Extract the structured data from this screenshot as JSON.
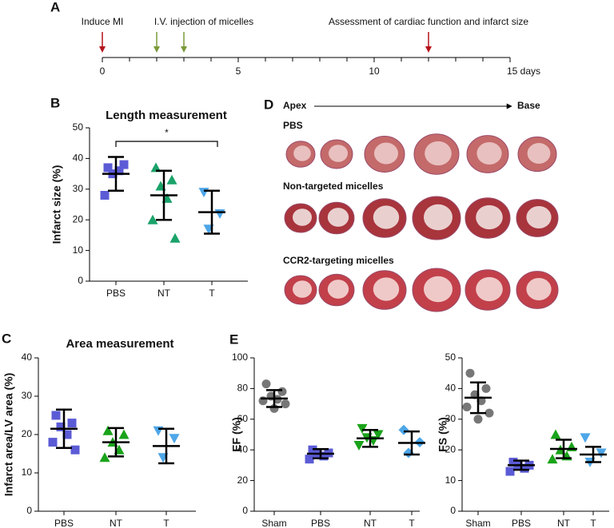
{
  "chart_data": [
    {
      "type": "timeline",
      "panel_label": "A",
      "xlim": [
        0,
        15
      ],
      "xticks": [
        0,
        5,
        10,
        {
          "value": 15,
          "label": "15 days"
        }
      ],
      "events": [
        {
          "label": "Induce MI",
          "x": [
            0
          ],
          "color": "#b5121b"
        },
        {
          "label": "I.V. injection of micelles",
          "x": [
            2,
            3
          ],
          "color": "#7a9a3a"
        },
        {
          "label": "Assessment of cardiac function and infarct size",
          "x": [
            12
          ],
          "color": "#b5121b"
        }
      ]
    },
    {
      "type": "dotplot",
      "panel_label": "B",
      "title": "Length measurement",
      "y_label": "Infarct size (%)",
      "categories": [
        "PBS",
        "NT",
        "T"
      ],
      "colors": [
        "#5b5bd6",
        "#1aa36a",
        "#4da6e8"
      ],
      "markers": [
        "square",
        "triangle",
        "triangle-down"
      ],
      "points": [
        [
          37,
          38,
          35,
          36,
          28
        ],
        [
          37,
          33,
          31,
          27,
          20,
          14
        ],
        [
          29,
          22,
          17
        ]
      ],
      "means": [
        35,
        28,
        22.5
      ],
      "errors": [
        5.5,
        8,
        7
      ],
      "ylim": [
        0,
        50
      ],
      "yticks": [
        0,
        10,
        20,
        30,
        40,
        50
      ],
      "annotation": "*"
    },
    {
      "type": "dotplot",
      "panel_label": "C",
      "title": "Area measurement",
      "y_label": "Infarct area/LV area (%)",
      "categories": [
        "PBS",
        "NT",
        "T"
      ],
      "colors": [
        "#5b5bd6",
        "#1aa31a",
        "#4da6e8"
      ],
      "markers": [
        "square",
        "triangle",
        "triangle-down"
      ],
      "points": [
        [
          25,
          23,
          22,
          20,
          18,
          16
        ],
        [
          21,
          20,
          18,
          16,
          14
        ],
        [
          21,
          19,
          14
        ]
      ],
      "means": [
        21.5,
        18,
        17
      ],
      "errors": [
        5,
        3.7,
        4.5
      ],
      "ylim": [
        0,
        40
      ],
      "yticks": [
        0,
        10,
        20,
        30,
        40
      ]
    },
    {
      "type": "dotplot",
      "panel_label": "E",
      "y_label": "EF (%)",
      "categories": [
        "Sham",
        "PBS",
        "NT",
        "T"
      ],
      "colors": [
        "#777777",
        "#5b5bd6",
        "#1aa31a",
        "#4da6e8"
      ],
      "markers": [
        "circle",
        "square",
        "triangle-down",
        "diamond"
      ],
      "points": [
        [
          83,
          78,
          75,
          73,
          72,
          70,
          67
        ],
        [
          40,
          38,
          37,
          36,
          34
        ],
        [
          54,
          50,
          48,
          46,
          43
        ],
        [
          53,
          45,
          38
        ]
      ],
      "means": [
        73.5,
        37.5,
        47.5,
        44.5
      ],
      "errors": [
        5.5,
        3,
        5.5,
        7.5
      ],
      "ylim": [
        0,
        100
      ],
      "yticks": [
        0,
        20,
        40,
        60,
        80,
        100
      ]
    },
    {
      "type": "dotplot",
      "y_label": "FS (%)",
      "categories": [
        "Sham",
        "PBS",
        "NT",
        "T"
      ],
      "colors": [
        "#777777",
        "#5b5bd6",
        "#1aa31a",
        "#4da6e8"
      ],
      "markers": [
        "circle",
        "square",
        "triangle",
        "triangle-down"
      ],
      "points": [
        [
          45,
          40,
          38,
          36,
          34,
          32,
          30
        ],
        [
          16,
          15,
          15,
          14,
          13
        ],
        [
          25,
          21,
          20,
          18,
          17
        ],
        [
          24,
          19,
          16
        ]
      ],
      "means": [
        37,
        15,
        20.3,
        18.5
      ],
      "errors": [
        5,
        1.5,
        3,
        2.5
      ],
      "ylim": [
        0,
        50
      ],
      "yticks": [
        0,
        10,
        20,
        30,
        40,
        50
      ]
    }
  ],
  "histology": {
    "panel_label": "D",
    "start": "Apex",
    "end": "Base",
    "rows": [
      "PBS",
      "Non-targeted micelles",
      "CCR2-targeting micelles"
    ]
  }
}
